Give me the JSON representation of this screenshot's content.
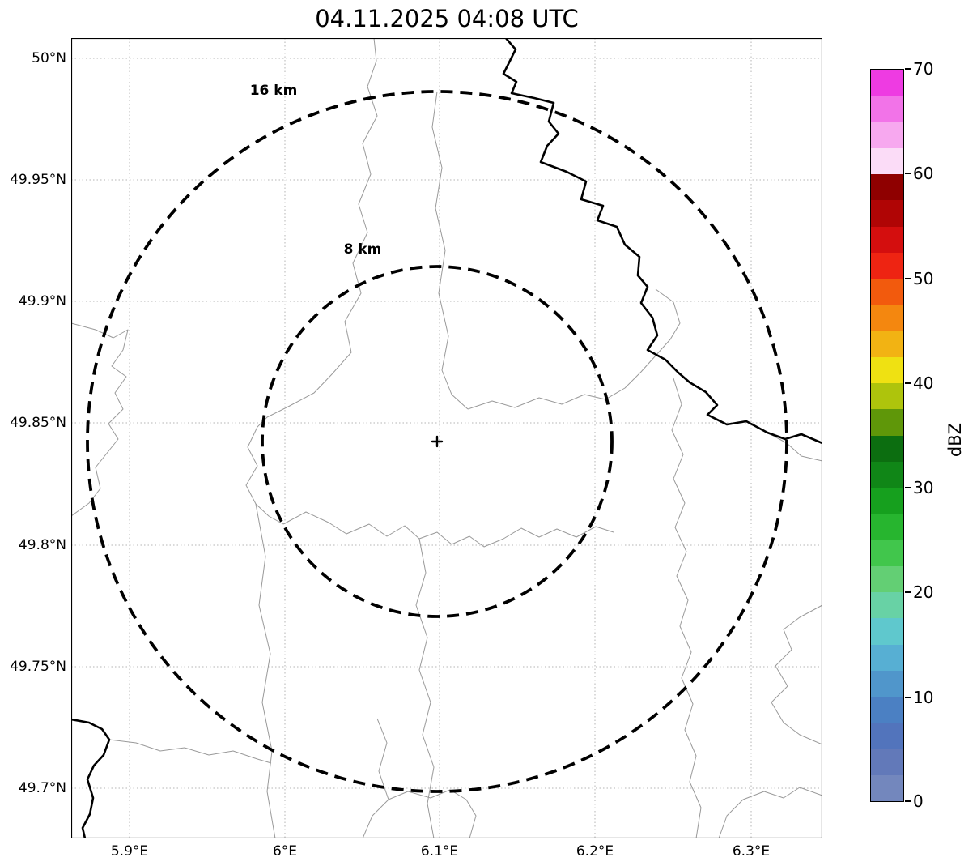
{
  "title": "04.11.2025 04:08 UTC",
  "map": {
    "range_rings": [
      {
        "label": "16 km"
      },
      {
        "label": "8 km"
      }
    ],
    "center_marker": "+",
    "x_axis": {
      "ticks": [
        "5.9°E",
        "6°E",
        "6.1°E",
        "6.2°E",
        "6.3°E"
      ]
    },
    "y_axis": {
      "ticks": [
        "50°N",
        "49.95°N",
        "49.9°N",
        "49.85°N",
        "49.8°N",
        "49.75°N",
        "49.7°N"
      ]
    }
  },
  "colorbar": {
    "label": "dBZ",
    "ticks": [
      "70",
      "60",
      "50",
      "40",
      "30",
      "20",
      "10",
      "0"
    ],
    "min": 0,
    "max": 70,
    "segments_top_to_bottom": [
      "#ee3be2",
      "#f273e8",
      "#f7a8ef",
      "#fbdcf7",
      "#8f0000",
      "#b00505",
      "#d40e0e",
      "#ee2412",
      "#f25a0d",
      "#f4870f",
      "#f2b313",
      "#efe112",
      "#aec40c",
      "#5f9709",
      "#0c6e10",
      "#108617",
      "#16a01e",
      "#27b52f",
      "#41c64c",
      "#63cf74",
      "#68d2a5",
      "#5fc8cd",
      "#57afd3",
      "#5096cb",
      "#4b80c3",
      "#5274bc",
      "#6279b9",
      "#7387bd"
    ]
  },
  "chart_data": {
    "type": "heatmap",
    "title": "04.11.2025 04:08 UTC",
    "x_ticks": [
      "5.9°E",
      "6°E",
      "6.1°E",
      "6.2°E",
      "6.3°E"
    ],
    "y_ticks": [
      "50°N",
      "49.95°N",
      "49.9°N",
      "49.85°N",
      "49.8°N",
      "49.75°N",
      "49.7°N"
    ],
    "colorbar": {
      "label": "dBZ",
      "min": 0,
      "max": 70,
      "tick_step": 10
    },
    "range_rings_km": [
      8,
      16
    ],
    "radar_center": {
      "lon_deg_e": 6.1,
      "lat_deg_n": 49.84
    },
    "echoes": "none visible (clear radar map)"
  }
}
